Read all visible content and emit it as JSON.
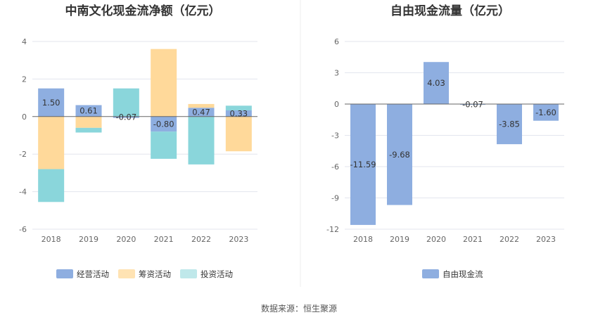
{
  "colors": {
    "operating": "#8eaee0",
    "financing": "#ffd99a",
    "investing": "#8ad6db",
    "free_cash_flow": "#8eaee0",
    "grid": "#e3e6ee",
    "axis": "#666666"
  },
  "source_text": "数据来源：恒生聚源",
  "chart_data": [
    {
      "type": "bar",
      "stacked": true,
      "title": "中南文化现金流净额（亿元）",
      "categories": [
        "2018",
        "2019",
        "2020",
        "2021",
        "2022",
        "2023"
      ],
      "ylim": [
        -6,
        4
      ],
      "yticks": [
        "4",
        "2",
        "0",
        "-2",
        "-4",
        "-6"
      ],
      "grid": true,
      "legend_position": "bottom",
      "series": [
        {
          "name": "经营活动",
          "color_key": "operating",
          "values": [
            1.5,
            0.61,
            -0.07,
            -0.8,
            0.47,
            0.33
          ],
          "labels": [
            "1.50",
            "0.61",
            "-0.07",
            "-0.80",
            "0.47",
            "0.33"
          ]
        },
        {
          "name": "筹资活动",
          "color_key": "financing",
          "values": [
            -2.8,
            -0.6,
            0.0,
            3.6,
            0.2,
            -1.85
          ]
        },
        {
          "name": "投资活动",
          "color_key": "investing",
          "values": [
            -1.75,
            -0.25,
            1.5,
            -1.45,
            -2.55,
            0.25
          ]
        }
      ]
    },
    {
      "type": "bar",
      "title": "自由现金流量（亿元）",
      "categories": [
        "2018",
        "2019",
        "2020",
        "2021",
        "2022",
        "2023"
      ],
      "ylim": [
        -12,
        6
      ],
      "yticks": [
        "6",
        "3",
        "0",
        "-3",
        "-6",
        "-9",
        "-12"
      ],
      "grid": true,
      "legend_position": "bottom",
      "series": [
        {
          "name": "自由现金流",
          "color_key": "free_cash_flow",
          "values": [
            -11.59,
            -9.68,
            4.03,
            -0.07,
            -3.85,
            -1.6
          ],
          "labels": [
            "-11.59",
            "-9.68",
            "4.03",
            "-0.07",
            "-3.85",
            "-1.60"
          ]
        }
      ]
    }
  ]
}
